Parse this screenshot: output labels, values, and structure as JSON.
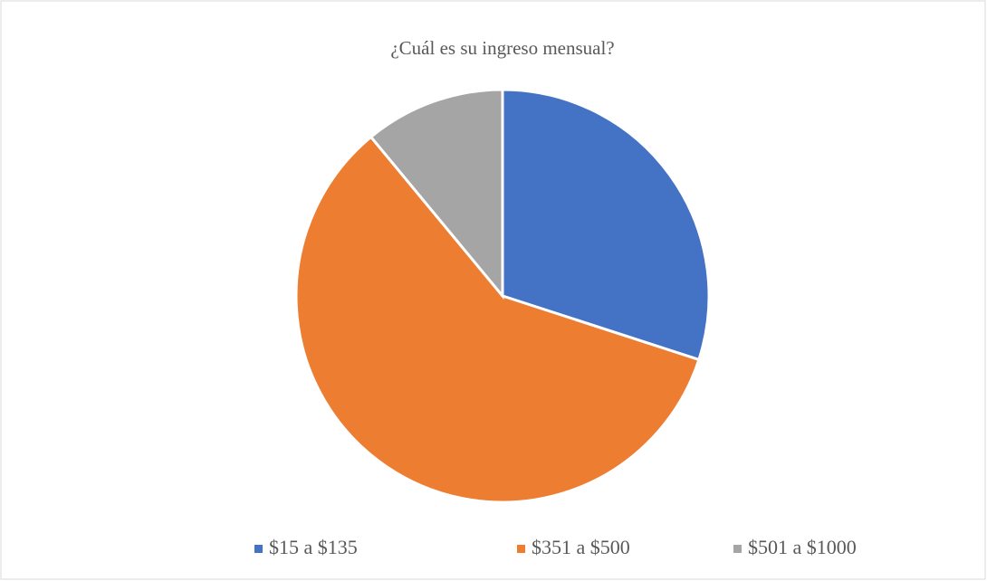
{
  "chart_data": {
    "type": "pie",
    "title": "¿Cuál es su ingreso mensual?",
    "categories": [
      "$15 a $135",
      "$351 a $500",
      "$501 a $1000"
    ],
    "values": [
      30,
      59,
      11
    ],
    "colors": [
      "#4472c4",
      "#ed7d31",
      "#a5a5a5"
    ],
    "legend": "bottom"
  }
}
